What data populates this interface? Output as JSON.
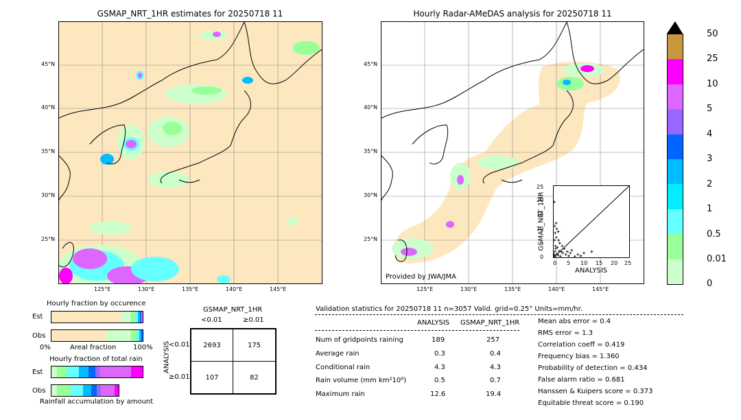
{
  "map1": {
    "title": "GSMAP_NRT_1HR estimates for 20250718 11",
    "lat_labels": [
      "45°N",
      "40°N",
      "35°N",
      "30°N",
      "25°N"
    ],
    "lon_labels": [
      "125°E",
      "130°E",
      "135°E",
      "140°E",
      "145°E"
    ]
  },
  "map2": {
    "title": "Hourly Radar-AMeDAS analysis for 20250718 11",
    "lat_labels": [
      "45°N",
      "40°N",
      "35°N",
      "30°N",
      "25°N"
    ],
    "lon_labels": [
      "125°E",
      "130°E",
      "135°E",
      "140°E",
      "145°E"
    ],
    "credit": "Provided by JWA/JMA"
  },
  "colorbar": {
    "labels": [
      "50",
      "25",
      "10",
      "5",
      "4",
      "3",
      "2",
      "1",
      "0.5",
      "0.01",
      "0"
    ],
    "colors": [
      "#c8963c",
      "#ff00ff",
      "#dd66ff",
      "#9966ff",
      "#0066ff",
      "#00bbff",
      "#00eeff",
      "#66ffff",
      "#99ff99",
      "#ccffcc",
      "#fde7bf"
    ]
  },
  "scatter": {
    "xlabel": "ANALYSIS",
    "ylabel": "GSMAP_NRT_1HR",
    "ticks": [
      "0",
      "5",
      "10",
      "15",
      "20",
      "25"
    ]
  },
  "chart_data": {
    "type": "scatter",
    "xlabel": "ANALYSIS",
    "ylabel": "GSMAP_NRT_1HR",
    "xlim": [
      0,
      25
    ],
    "ylim": [
      0,
      25
    ],
    "points": [
      [
        0.2,
        19.4
      ],
      [
        0.5,
        8.5
      ],
      [
        0.8,
        12.0
      ],
      [
        1.0,
        10.0
      ],
      [
        1.5,
        9.0
      ],
      [
        2.0,
        5.0
      ],
      [
        0.3,
        6.0
      ],
      [
        0.6,
        4.0
      ],
      [
        1.2,
        3.5
      ],
      [
        2.5,
        2.0
      ],
      [
        3.0,
        1.5
      ],
      [
        4.0,
        1.0
      ],
      [
        5.0,
        0.5
      ],
      [
        6.0,
        2.5
      ],
      [
        8.0,
        1.0
      ],
      [
        9.0,
        0.5
      ],
      [
        10.0,
        1.5
      ],
      [
        12.6,
        2.0
      ],
      [
        0.1,
        1.0
      ],
      [
        0.4,
        2.0
      ],
      [
        0.7,
        3.0
      ],
      [
        1.1,
        1.2
      ],
      [
        1.4,
        0.8
      ],
      [
        1.8,
        2.2
      ],
      [
        2.2,
        0.4
      ],
      [
        0.2,
        0.6
      ],
      [
        0.5,
        0.3
      ],
      [
        3.5,
        3.0
      ],
      [
        4.5,
        2.0
      ],
      [
        0.9,
        7.0
      ],
      [
        1.6,
        6.0
      ],
      [
        0.3,
        11.0
      ],
      [
        2.8,
        4.0
      ],
      [
        5.5,
        1.5
      ],
      [
        7.0,
        0.3
      ]
    ]
  },
  "occurrence": {
    "title": "Hourly fraction by occurence",
    "est_label": "Est",
    "obs_label": "Obs",
    "left": "0%",
    "mid": "Areal fraction",
    "right": "100%"
  },
  "total": {
    "title": "Hourly fraction of total rain",
    "est_label": "Est",
    "obs_label": "Obs",
    "footer": "Rainfall accumulation by amount"
  },
  "contingency": {
    "title": "GSMAP_NRT_1HR",
    "col1": "<0.01",
    "col2": "≥0.01",
    "row1": "<0.01",
    "row2": "≥0.01",
    "side": "ANALYSIS",
    "cells": [
      "2693",
      "175",
      "107",
      "82"
    ]
  },
  "validation": {
    "header": "Validation statistics for 20250718 11  n=3057 Valid. grid=0.25° Units=mm/hr.",
    "col_analysis": "ANALYSIS",
    "col_gsmap": "GSMAP_NRT_1HR",
    "rows": [
      {
        "label": "Num of gridpoints raining",
        "a": "189",
        "g": "257"
      },
      {
        "label": "Average rain",
        "a": "0.3",
        "g": "0.4"
      },
      {
        "label": "Conditional rain",
        "a": "4.3",
        "g": "4.3"
      },
      {
        "label": "Rain volume (mm km²10⁶)",
        "a": "0.5",
        "g": "0.7"
      },
      {
        "label": "Maximum rain",
        "a": "12.6",
        "g": "19.4"
      }
    ],
    "scores": [
      "Mean abs error =    0.4",
      "RMS error =    1.3",
      "Correlation coeff =  0.419",
      "Frequency bias =  1.360",
      "Probability of detection =  0.434",
      "False alarm ratio =  0.681",
      "Hanssen & Kuipers score =  0.373",
      "Equitable threat score =  0.190"
    ]
  }
}
